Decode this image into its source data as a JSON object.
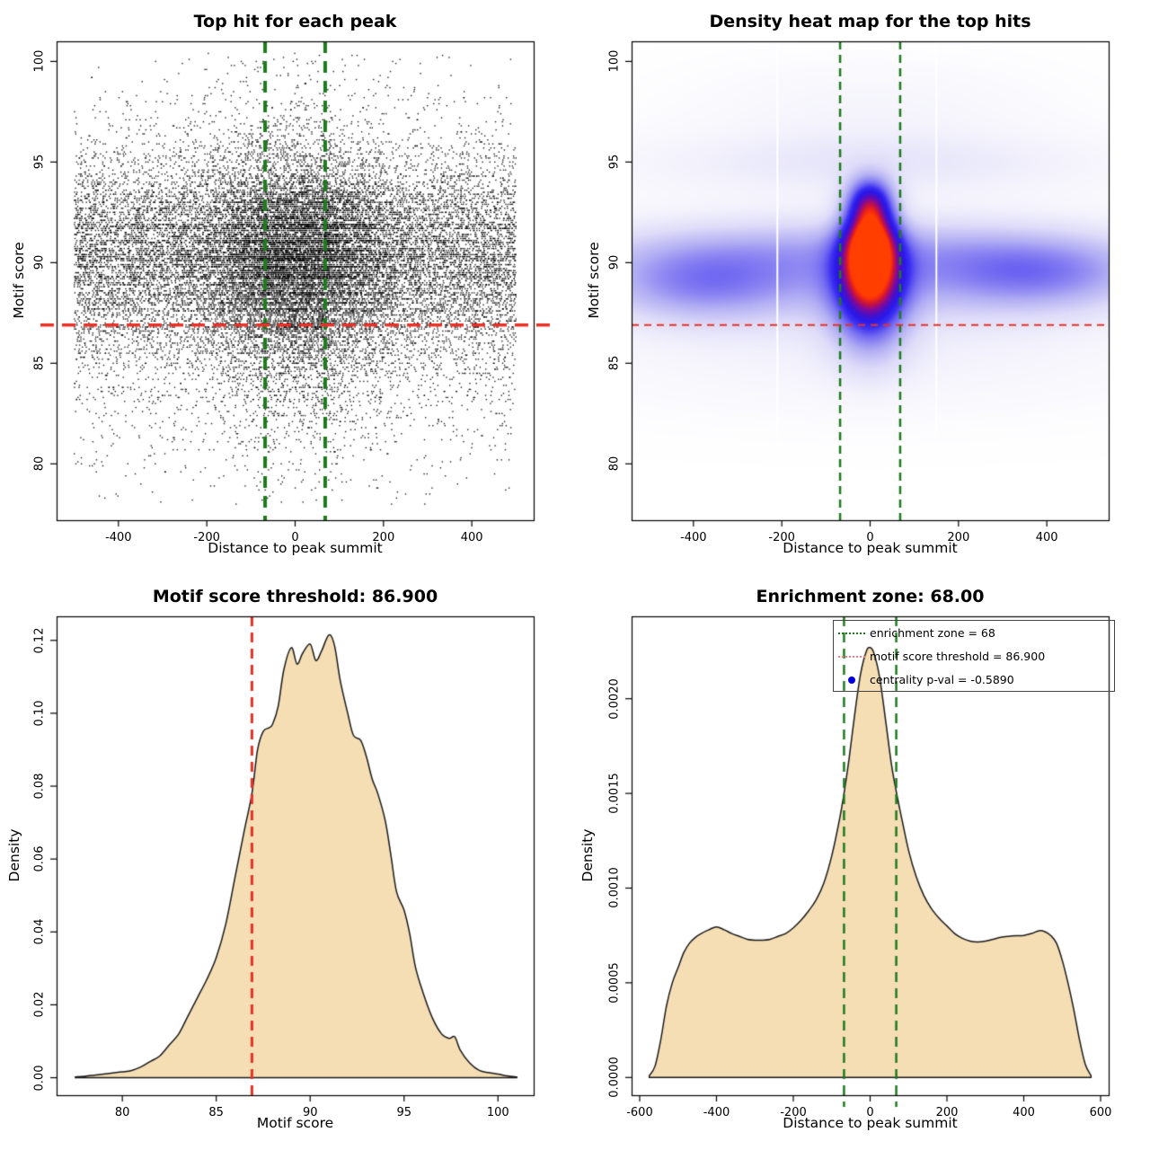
{
  "page": {
    "background": "#ffffff"
  },
  "colors": {
    "scatter_point": "#000000",
    "enrichment_green": "#1f7a1f",
    "threshold_red": "#e83228",
    "density_fill": "#f5deb3",
    "curve_stroke": "#1a1a1a",
    "legend_red_sample": "#f08080",
    "legend_blue_dot": "#0000dd",
    "axis": "#000000",
    "heat_stops": [
      [
        0.0,
        255,
        255,
        255
      ],
      [
        0.1,
        244,
        243,
        252
      ],
      [
        0.22,
        221,
        219,
        248
      ],
      [
        0.35,
        178,
        174,
        243
      ],
      [
        0.48,
        118,
        110,
        241
      ],
      [
        0.58,
        62,
        48,
        240
      ],
      [
        0.66,
        40,
        24,
        235
      ],
      [
        0.74,
        72,
        16,
        200
      ],
      [
        0.82,
        132,
        10,
        150
      ],
      [
        0.9,
        202,
        20,
        58
      ],
      [
        0.96,
        245,
        42,
        18
      ],
      [
        1.0,
        255,
        62,
        0
      ]
    ]
  },
  "chart_data": [
    {
      "id": "top-hit-scatter",
      "type": "scatter",
      "title": "Top hit for each peak",
      "xlabel": "Distance to peak summit",
      "ylabel": "Motif score",
      "xlim": [
        -540,
        540
      ],
      "ylim": [
        77.2,
        101.0
      ],
      "xticks": [
        "-400",
        "-200",
        "0",
        "200",
        "400"
      ],
      "xtick_values": [
        -400,
        -200,
        0,
        200,
        400
      ],
      "yticks": [
        "80",
        "85",
        "90",
        "95",
        "100"
      ],
      "ytick_values": [
        80,
        85,
        90,
        95,
        100
      ],
      "distribution": {
        "n_points": 26000,
        "y_min": 78.0,
        "y_max": 100.4,
        "y_step": 0.1,
        "row_weight_gaussians": [
          [
            90.55,
            2.5,
            1.0
          ],
          [
            86.5,
            3.6,
            0.13
          ],
          [
            97.6,
            1.3,
            0.02
          ],
          [
            99.9,
            0.4,
            0.012
          ]
        ],
        "x_range": [
          -500,
          500
        ],
        "x_center_fraction": 0.4,
        "x_center_sd": 115
      },
      "lines": [
        {
          "orientation": "vertical",
          "value": -68,
          "color": "enrichment_green",
          "width": 4,
          "dash": [
            13,
            9
          ],
          "overflow": 0
        },
        {
          "orientation": "vertical",
          "value": 68,
          "color": "enrichment_green",
          "width": 4,
          "dash": [
            13,
            9
          ],
          "overflow": 0
        },
        {
          "orientation": "horizontal",
          "value": 86.9,
          "color": "threshold_red",
          "width": 3.5,
          "dash": [
            15,
            9
          ],
          "overflow": 18
        }
      ]
    },
    {
      "id": "density-heatmap",
      "type": "heatmap",
      "title": "Density heat map for the top hits",
      "xlabel": "Distance to peak summit",
      "ylabel": "Motif score",
      "xlim": [
        -540,
        540
      ],
      "ylim": [
        77.2,
        101.0
      ],
      "xticks": [
        "-400",
        "-200",
        "0",
        "200",
        "400"
      ],
      "xtick_values": [
        -400,
        -200,
        0,
        200,
        400
      ],
      "yticks": [
        "80",
        "85",
        "90",
        "95",
        "100"
      ],
      "ytick_values": [
        80,
        85,
        90,
        95,
        100
      ],
      "hotspots": [
        [
          0,
          91.2
        ],
        [
          0,
          93.0
        ]
      ],
      "components": [
        [
          0,
          91.2,
          42,
          1.05,
          1.0
        ],
        [
          0,
          93.0,
          38,
          0.9,
          0.95
        ],
        [
          0,
          89.6,
          48,
          1.3,
          0.75
        ],
        [
          0,
          88.2,
          55,
          1.7,
          0.5
        ],
        [
          0,
          86.9,
          70,
          1.9,
          0.25
        ],
        [
          0,
          89.4,
          480,
          1.8,
          0.42
        ],
        [
          -60,
          90.9,
          480,
          1.15,
          0.22
        ],
        [
          -390,
          88.9,
          160,
          1.4,
          0.38
        ],
        [
          390,
          89.4,
          170,
          1.3,
          0.38
        ],
        [
          0,
          94.9,
          430,
          1.2,
          0.22
        ],
        [
          0,
          97.8,
          300,
          1.7,
          0.11
        ],
        [
          0,
          85.2,
          500,
          2.1,
          0.13
        ]
      ],
      "white_stripes_x": [
        -210,
        150
      ],
      "lines": [
        {
          "orientation": "vertical",
          "value": -68,
          "color": "enrichment_green",
          "width": 2.5,
          "dash": [
            9,
            6
          ],
          "overflow": 0
        },
        {
          "orientation": "vertical",
          "value": 68,
          "color": "enrichment_green",
          "width": 2.5,
          "dash": [
            9,
            6
          ],
          "overflow": 0
        },
        {
          "orientation": "horizontal",
          "value": 86.9,
          "color": "threshold_red",
          "width": 2,
          "dash": [
            8,
            6
          ],
          "overflow": 0
        }
      ]
    },
    {
      "id": "motif-score-density",
      "type": "density",
      "title": "Motif score threshold: 86.900",
      "xlabel": "Motif score",
      "ylabel": "Density",
      "xlim": [
        76.5,
        101.9
      ],
      "ylim": [
        -0.0048,
        0.1266
      ],
      "xticks": [
        "80",
        "85",
        "90",
        "95",
        "100"
      ],
      "xtick_values": [
        80,
        85,
        90,
        95,
        100
      ],
      "yticks": [
        "0.00",
        "0.02",
        "0.04",
        "0.06",
        "0.08",
        "0.10",
        "0.12"
      ],
      "ytick_values": [
        0.0,
        0.02,
        0.04,
        0.06,
        0.08,
        0.1,
        0.12
      ],
      "threshold": 86.9,
      "curve": [
        [
          77.5,
          0.0002
        ],
        [
          78,
          0.0004
        ],
        [
          78.5,
          0.0007
        ],
        [
          79,
          0.001
        ],
        [
          79.5,
          0.0013
        ],
        [
          80,
          0.0016
        ],
        [
          80.5,
          0.002
        ],
        [
          81,
          0.003
        ],
        [
          81.5,
          0.0045
        ],
        [
          82,
          0.006
        ],
        [
          82.5,
          0.009
        ],
        [
          83,
          0.012
        ],
        [
          83.5,
          0.017
        ],
        [
          84,
          0.022
        ],
        [
          84.5,
          0.027
        ],
        [
          85,
          0.033
        ],
        [
          85.5,
          0.042
        ],
        [
          86,
          0.055
        ],
        [
          86.5,
          0.068
        ],
        [
          86.9,
          0.078
        ],
        [
          87.2,
          0.09
        ],
        [
          87.5,
          0.095
        ],
        [
          87.8,
          0.096
        ],
        [
          88,
          0.097
        ],
        [
          88.3,
          0.102
        ],
        [
          88.6,
          0.112
        ],
        [
          89,
          0.118
        ],
        [
          89.3,
          0.1135
        ],
        [
          89.6,
          0.1165
        ],
        [
          90,
          0.119
        ],
        [
          90.3,
          0.1145
        ],
        [
          90.6,
          0.117
        ],
        [
          91,
          0.1215
        ],
        [
          91.3,
          0.1185
        ],
        [
          91.6,
          0.109
        ],
        [
          92,
          0.1
        ],
        [
          92.3,
          0.094
        ],
        [
          92.7,
          0.0925
        ],
        [
          93,
          0.088
        ],
        [
          93.3,
          0.082
        ],
        [
          93.6,
          0.078
        ],
        [
          94,
          0.0705
        ],
        [
          94.3,
          0.061
        ],
        [
          94.6,
          0.051
        ],
        [
          95,
          0.046
        ],
        [
          95.3,
          0.0395
        ],
        [
          95.6,
          0.0305
        ],
        [
          96,
          0.0235
        ],
        [
          96.5,
          0.0165
        ],
        [
          97,
          0.012
        ],
        [
          97.4,
          0.0108
        ],
        [
          97.7,
          0.0112
        ],
        [
          98,
          0.0075
        ],
        [
          98.5,
          0.004
        ],
        [
          99,
          0.002
        ],
        [
          99.5,
          0.0014
        ],
        [
          100,
          0.001
        ],
        [
          100.5,
          0.0005
        ],
        [
          101,
          0.0002
        ]
      ],
      "lines": [
        {
          "orientation": "vertical",
          "value": 86.9,
          "color": "threshold_red",
          "width": 3,
          "dash": [
            11,
            7
          ],
          "overflow": 0
        }
      ]
    },
    {
      "id": "distance-density",
      "type": "density",
      "title": "Enrichment zone: 68.00",
      "xlabel": "Distance to peak summit",
      "ylabel": "Density",
      "xlim": [
        -621,
        621
      ],
      "ylim": [
        -9.35e-05,
        0.002435
      ],
      "xticks": [
        "-600",
        "-400",
        "-200",
        "0",
        "200",
        "400",
        "600"
      ],
      "xtick_values": [
        -600,
        -400,
        -200,
        0,
        200,
        400,
        600
      ],
      "yticks": [
        "0.0000",
        "0.0005",
        "0.0010",
        "0.0015",
        "0.0020"
      ],
      "ytick_values": [
        0.0,
        0.0005,
        0.001,
        0.0015,
        0.002
      ],
      "enrichment_zone": 68,
      "curve": [
        [
          -575,
          1e-05
        ],
        [
          -560,
          6e-05
        ],
        [
          -545,
          0.0002
        ],
        [
          -530,
          0.00038
        ],
        [
          -515,
          0.0005
        ],
        [
          -500,
          0.00058
        ],
        [
          -485,
          0.00066
        ],
        [
          -470,
          0.00071
        ],
        [
          -455,
          0.00074
        ],
        [
          -440,
          0.00076
        ],
        [
          -420,
          0.00078
        ],
        [
          -400,
          0.000795
        ],
        [
          -380,
          0.00078
        ],
        [
          -360,
          0.00076
        ],
        [
          -340,
          0.000745
        ],
        [
          -320,
          0.00073
        ],
        [
          -300,
          0.000725
        ],
        [
          -280,
          0.000725
        ],
        [
          -260,
          0.00073
        ],
        [
          -240,
          0.000745
        ],
        [
          -220,
          0.00076
        ],
        [
          -200,
          0.00079
        ],
        [
          -180,
          0.00083
        ],
        [
          -160,
          0.00088
        ],
        [
          -140,
          0.00094
        ],
        [
          -120,
          0.00103
        ],
        [
          -100,
          0.00117
        ],
        [
          -80,
          0.00136
        ],
        [
          -68,
          0.0015
        ],
        [
          -55,
          0.00168
        ],
        [
          -40,
          0.00192
        ],
        [
          -25,
          0.00213
        ],
        [
          -10,
          0.00225
        ],
        [
          0,
          0.00227
        ],
        [
          10,
          0.00224
        ],
        [
          25,
          0.00211
        ],
        [
          40,
          0.00189
        ],
        [
          55,
          0.00166
        ],
        [
          68,
          0.00151
        ],
        [
          80,
          0.00139
        ],
        [
          100,
          0.0012
        ],
        [
          120,
          0.00106
        ],
        [
          140,
          0.00096
        ],
        [
          160,
          0.00089
        ],
        [
          180,
          0.00084
        ],
        [
          200,
          0.0008
        ],
        [
          220,
          0.00076
        ],
        [
          240,
          0.000735
        ],
        [
          260,
          0.00072
        ],
        [
          280,
          0.000715
        ],
        [
          300,
          0.00072
        ],
        [
          320,
          0.00073
        ],
        [
          340,
          0.00074
        ],
        [
          360,
          0.000745
        ],
        [
          380,
          0.000748
        ],
        [
          400,
          0.00075
        ],
        [
          420,
          0.00076
        ],
        [
          440,
          0.000775
        ],
        [
          455,
          0.00077
        ],
        [
          470,
          0.00075
        ],
        [
          485,
          0.00071
        ],
        [
          500,
          0.00062
        ],
        [
          515,
          0.0005
        ],
        [
          530,
          0.00036
        ],
        [
          545,
          0.0002
        ],
        [
          560,
          7e-05
        ],
        [
          575,
          1e-05
        ]
      ],
      "lines": [
        {
          "orientation": "vertical",
          "value": -68,
          "color": "enrichment_green",
          "width": 2.5,
          "dash": [
            11,
            7
          ],
          "overflow_bottom": 13
        },
        {
          "orientation": "vertical",
          "value": 68,
          "color": "enrichment_green",
          "width": 2.5,
          "dash": [
            11,
            7
          ],
          "overflow_bottom": 13
        }
      ],
      "legend": {
        "items": [
          {
            "label": "enrichment zone = 68",
            "sample": "dotted-line",
            "color_key": "enrichment_green"
          },
          {
            "label": "motif score threshold = 86.900",
            "sample": "dotted-line",
            "color_key": "legend_red_sample"
          },
          {
            "label": "centrality p-val = -0.5890",
            "sample": "dot",
            "color_key": "legend_blue_dot"
          }
        ]
      }
    }
  ]
}
